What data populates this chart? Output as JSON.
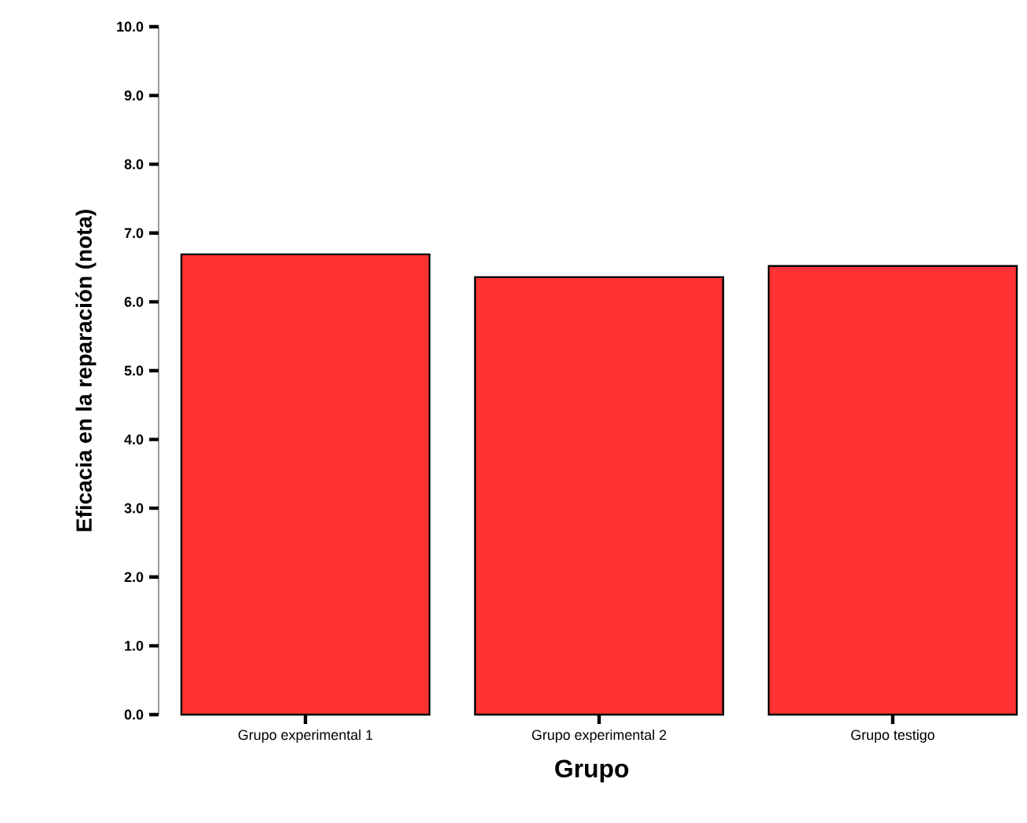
{
  "chart_data": {
    "type": "bar",
    "xlabel": "Grupo",
    "ylabel": "Eficacia en la reparación (nota)",
    "categories": [
      "Grupo experimental 1",
      "Grupo experimental 2",
      "Grupo testigo"
    ],
    "values": [
      6.69,
      6.36,
      6.52
    ],
    "color": "#ff3333",
    "ylim": [
      0,
      10
    ],
    "yticks": [
      {
        "value": 0,
        "label": "0.0"
      },
      {
        "value": 1,
        "label": "1.0"
      },
      {
        "value": 2,
        "label": "2.0"
      },
      {
        "value": 3,
        "label": "3.0"
      },
      {
        "value": 4,
        "label": "4.0"
      },
      {
        "value": 5,
        "label": "5.0"
      },
      {
        "value": 6,
        "label": "6.0"
      },
      {
        "value": 7,
        "label": "7.0"
      },
      {
        "value": 8,
        "label": "8.0"
      },
      {
        "value": 9,
        "label": "9.0"
      },
      {
        "value": 10,
        "label": "10.0"
      }
    ]
  }
}
